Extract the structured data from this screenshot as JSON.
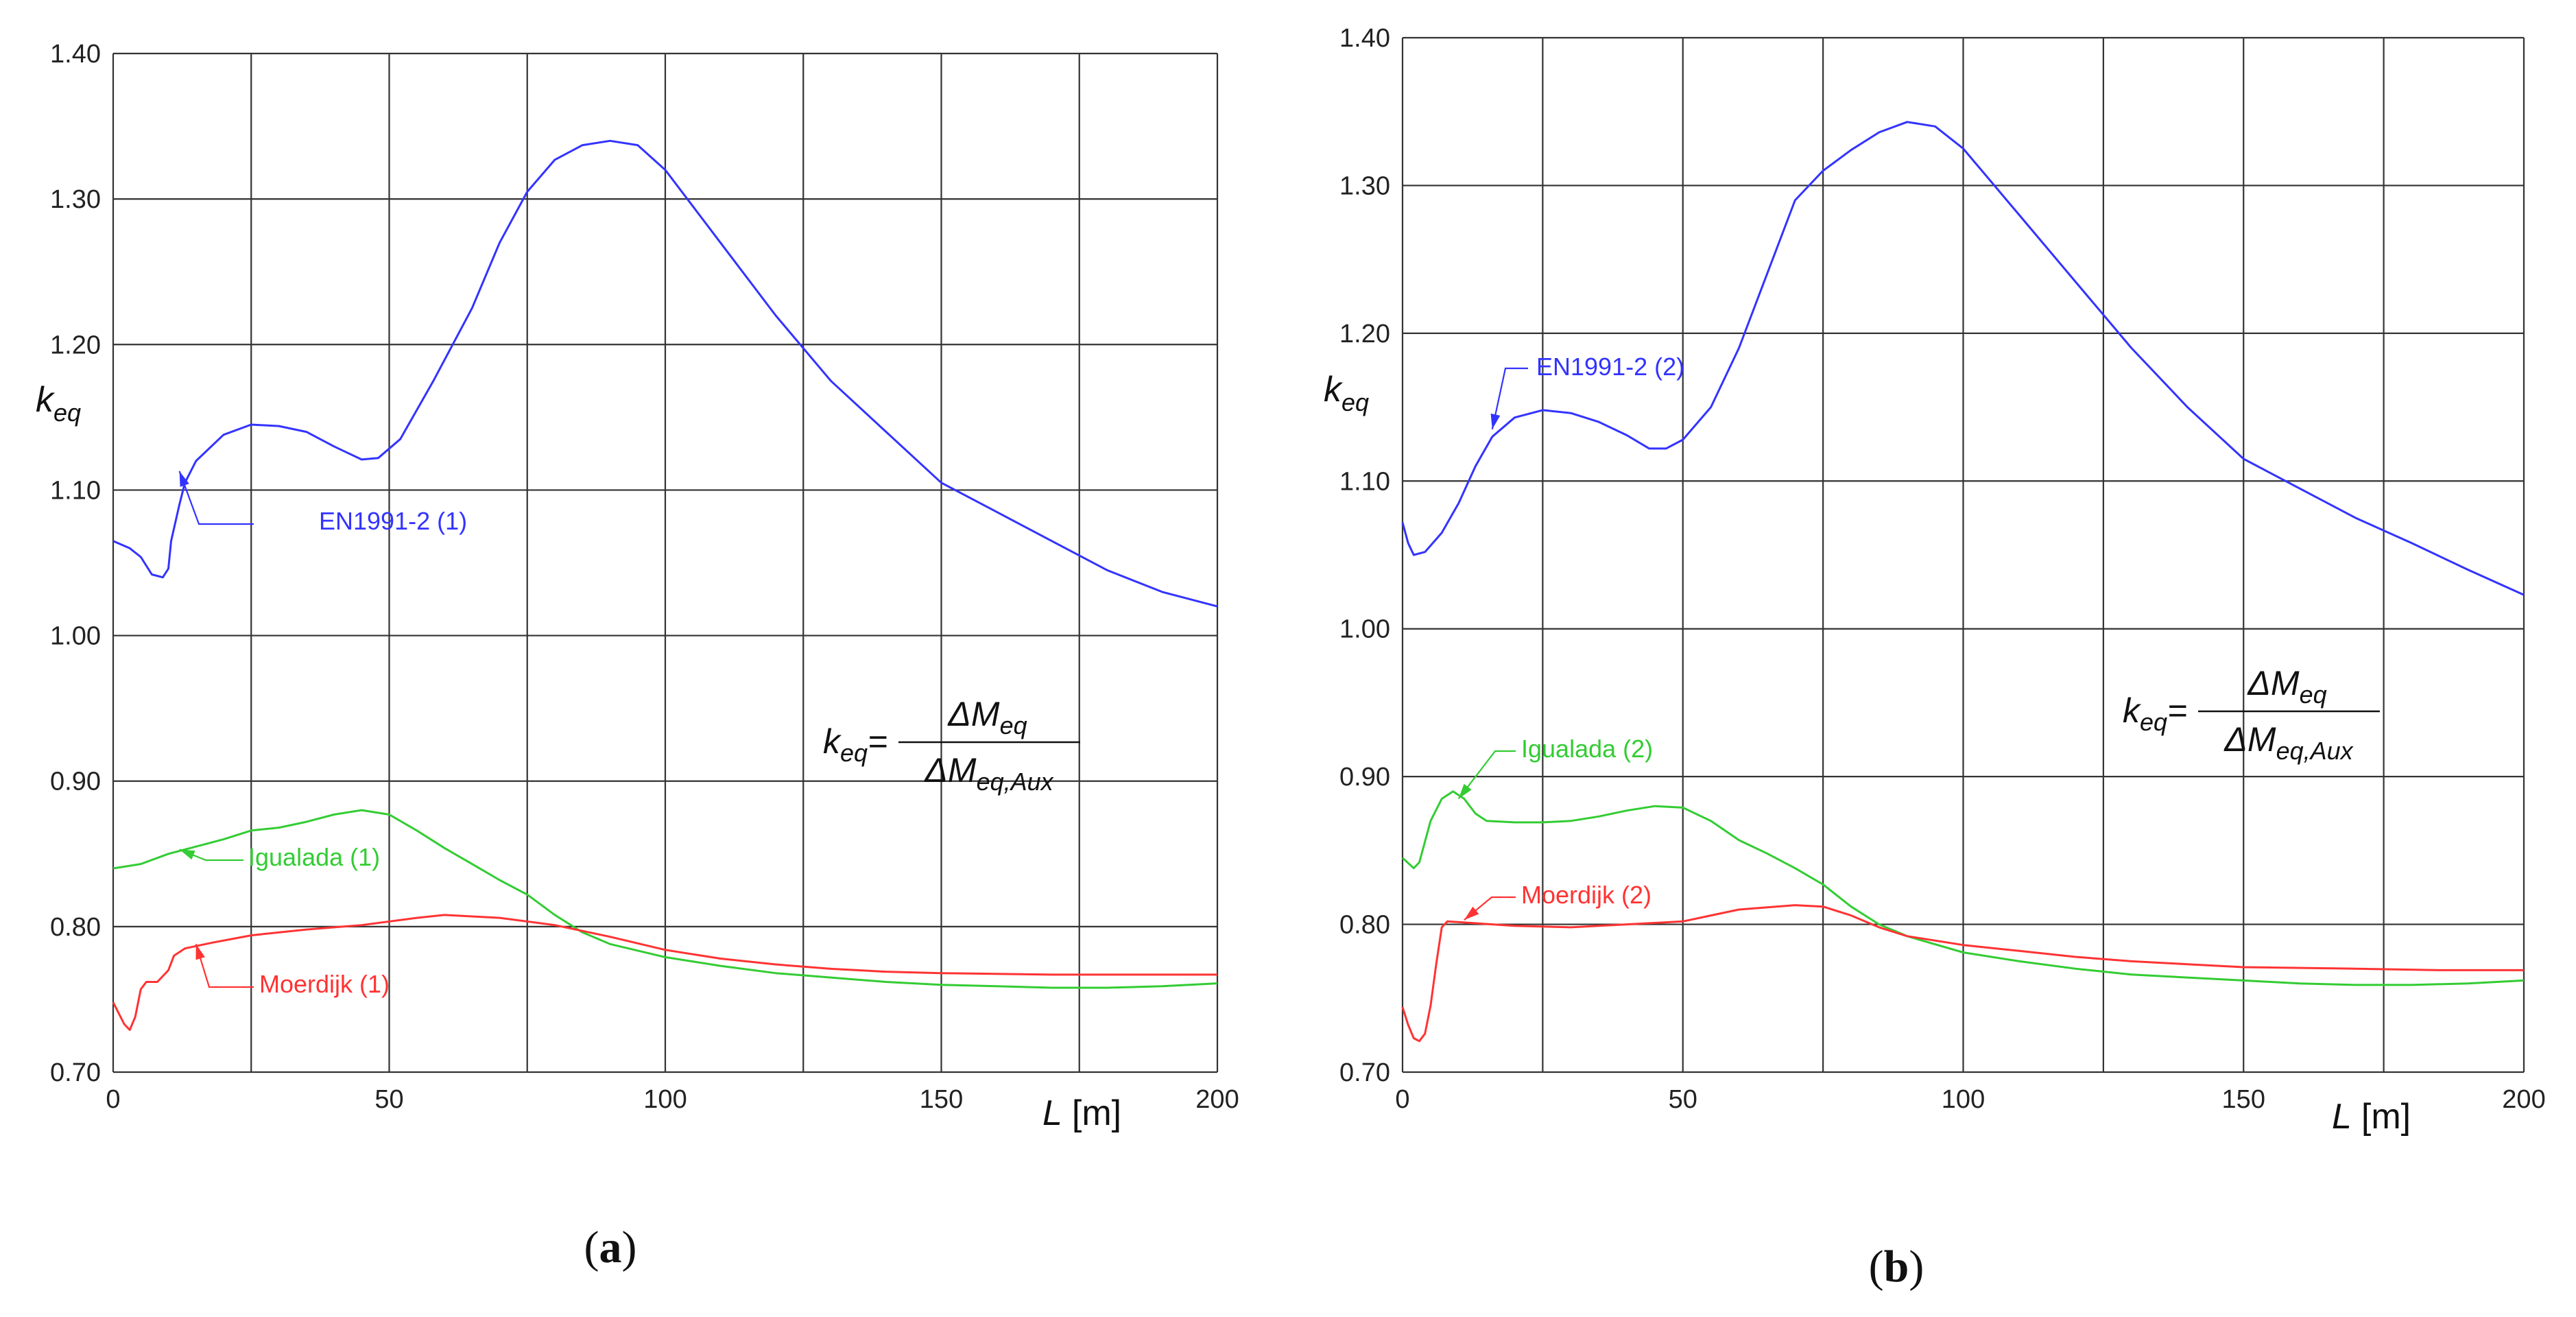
{
  "chart_data": [
    {
      "type": "line",
      "panel_label": "a",
      "xlabel_symbol": "L",
      "xlabel_unit": "[m]",
      "ylabel_symbol": "k",
      "ylabel_sub": "eq",
      "xlim": [
        0,
        200
      ],
      "ylim": [
        0.7,
        1.4
      ],
      "xticks": [
        "0",
        "50",
        "100",
        "150",
        "200"
      ],
      "yticks": [
        "0.70",
        "0.80",
        "0.90",
        "1.00",
        "1.10",
        "1.20",
        "1.30",
        "1.40"
      ],
      "grid": true,
      "formula": {
        "lhs": "k",
        "lhs_sub": "eq",
        "num": "ΔM",
        "num_sub": "eq",
        "den": "ΔM",
        "den_sub": "eq,Aux"
      },
      "series": [
        {
          "name": "EN1991-2 (1)",
          "color": "#3333ff",
          "points": [
            [
              0,
              1.065
            ],
            [
              3,
              1.06
            ],
            [
              5,
              1.054
            ],
            [
              7,
              1.042
            ],
            [
              9,
              1.04
            ],
            [
              10,
              1.046
            ],
            [
              10.5,
              1.065
            ],
            [
              12,
              1.09
            ],
            [
              13,
              1.105
            ],
            [
              15,
              1.12
            ],
            [
              20,
              1.138
            ],
            [
              25,
              1.145
            ],
            [
              30,
              1.144
            ],
            [
              35,
              1.14
            ],
            [
              40,
              1.13
            ],
            [
              45,
              1.121
            ],
            [
              48,
              1.122
            ],
            [
              52,
              1.135
            ],
            [
              58,
              1.175
            ],
            [
              65,
              1.225
            ],
            [
              70,
              1.27
            ],
            [
              75,
              1.305
            ],
            [
              80,
              1.327
            ],
            [
              85,
              1.337
            ],
            [
              90,
              1.34
            ],
            [
              95,
              1.337
            ],
            [
              100,
              1.32
            ],
            [
              110,
              1.27
            ],
            [
              120,
              1.22
            ],
            [
              130,
              1.175
            ],
            [
              140,
              1.14
            ],
            [
              150,
              1.105
            ],
            [
              160,
              1.085
            ],
            [
              170,
              1.065
            ],
            [
              180,
              1.045
            ],
            [
              190,
              1.03
            ],
            [
              200,
              1.02
            ]
          ]
        },
        {
          "name": "Igualada (1)",
          "color": "#33cc33",
          "points": [
            [
              0,
              0.84
            ],
            [
              5,
              0.843
            ],
            [
              10,
              0.85
            ],
            [
              15,
              0.855
            ],
            [
              20,
              0.86
            ],
            [
              25,
              0.866
            ],
            [
              30,
              0.868
            ],
            [
              35,
              0.872
            ],
            [
              40,
              0.877
            ],
            [
              45,
              0.88
            ],
            [
              50,
              0.877
            ],
            [
              55,
              0.866
            ],
            [
              60,
              0.854
            ],
            [
              65,
              0.843
            ],
            [
              70,
              0.832
            ],
            [
              75,
              0.822
            ],
            [
              80,
              0.808
            ],
            [
              85,
              0.796
            ],
            [
              90,
              0.788
            ],
            [
              100,
              0.779
            ],
            [
              110,
              0.773
            ],
            [
              120,
              0.768
            ],
            [
              130,
              0.765
            ],
            [
              140,
              0.762
            ],
            [
              150,
              0.76
            ],
            [
              160,
              0.759
            ],
            [
              170,
              0.758
            ],
            [
              180,
              0.758
            ],
            [
              190,
              0.759
            ],
            [
              200,
              0.761
            ]
          ]
        },
        {
          "name": "Moerdijk (1)",
          "color": "#ff3333",
          "points": [
            [
              0,
              0.748
            ],
            [
              2,
              0.733
            ],
            [
              3,
              0.729
            ],
            [
              4,
              0.738
            ],
            [
              5,
              0.757
            ],
            [
              6,
              0.762
            ],
            [
              8,
              0.762
            ],
            [
              10,
              0.77
            ],
            [
              11,
              0.78
            ],
            [
              13,
              0.785
            ],
            [
              18,
              0.789
            ],
            [
              25,
              0.794
            ],
            [
              35,
              0.798
            ],
            [
              45,
              0.801
            ],
            [
              55,
              0.806
            ],
            [
              60,
              0.808
            ],
            [
              70,
              0.806
            ],
            [
              80,
              0.801
            ],
            [
              90,
              0.793
            ],
            [
              100,
              0.784
            ],
            [
              110,
              0.778
            ],
            [
              120,
              0.774
            ],
            [
              130,
              0.771
            ],
            [
              140,
              0.769
            ],
            [
              150,
              0.768
            ],
            [
              170,
              0.767
            ],
            [
              185,
              0.767
            ],
            [
              200,
              0.767
            ]
          ]
        }
      ],
      "annotations": [
        {
          "series": "EN1991-2 (1)",
          "text": "EN1991-2 (1)",
          "color": "#3333ff"
        },
        {
          "series": "Igualada (1)",
          "text": "Igualada (1)",
          "color": "#33cc33"
        },
        {
          "series": "Moerdijk (1)",
          "text": "Moerdijk (1)",
          "color": "#ff3333"
        }
      ]
    },
    {
      "type": "line",
      "panel_label": "b",
      "xlabel_symbol": "L",
      "xlabel_unit": "[m]",
      "ylabel_symbol": "k",
      "ylabel_sub": "eq",
      "xlim": [
        0,
        200
      ],
      "ylim": [
        0.7,
        1.4
      ],
      "xticks": [
        "0",
        "50",
        "100",
        "150",
        "200"
      ],
      "yticks": [
        "0.70",
        "0.80",
        "0.90",
        "1.00",
        "1.10",
        "1.20",
        "1.30",
        "1.40"
      ],
      "grid": true,
      "formula": {
        "lhs": "k",
        "lhs_sub": "eq",
        "num": "ΔM",
        "num_sub": "eq",
        "den": "ΔM",
        "den_sub": "eq,Aux"
      },
      "series": [
        {
          "name": "EN1991-2 (2)",
          "color": "#3333ff",
          "points": [
            [
              0,
              1.072
            ],
            [
              1,
              1.058
            ],
            [
              2,
              1.05
            ],
            [
              4,
              1.052
            ],
            [
              7,
              1.065
            ],
            [
              10,
              1.085
            ],
            [
              13,
              1.11
            ],
            [
              16,
              1.13
            ],
            [
              20,
              1.143
            ],
            [
              25,
              1.148
            ],
            [
              30,
              1.146
            ],
            [
              35,
              1.14
            ],
            [
              40,
              1.131
            ],
            [
              44,
              1.122
            ],
            [
              47,
              1.122
            ],
            [
              50,
              1.128
            ],
            [
              55,
              1.15
            ],
            [
              60,
              1.19
            ],
            [
              65,
              1.24
            ],
            [
              70,
              1.29
            ],
            [
              75,
              1.31
            ],
            [
              80,
              1.324
            ],
            [
              85,
              1.336
            ],
            [
              90,
              1.343
            ],
            [
              95,
              1.34
            ],
            [
              100,
              1.325
            ],
            [
              110,
              1.28
            ],
            [
              120,
              1.235
            ],
            [
              130,
              1.19
            ],
            [
              140,
              1.15
            ],
            [
              150,
              1.115
            ],
            [
              160,
              1.095
            ],
            [
              170,
              1.075
            ],
            [
              180,
              1.058
            ],
            [
              190,
              1.04
            ],
            [
              200,
              1.023
            ]
          ]
        },
        {
          "name": "Igualada (2)",
          "color": "#33cc33",
          "points": [
            [
              0,
              0.845
            ],
            [
              2,
              0.838
            ],
            [
              3,
              0.842
            ],
            [
              5,
              0.87
            ],
            [
              7,
              0.885
            ],
            [
              9,
              0.89
            ],
            [
              11,
              0.885
            ],
            [
              13,
              0.875
            ],
            [
              15,
              0.87
            ],
            [
              20,
              0.869
            ],
            [
              25,
              0.869
            ],
            [
              30,
              0.87
            ],
            [
              35,
              0.873
            ],
            [
              40,
              0.877
            ],
            [
              45,
              0.88
            ],
            [
              50,
              0.879
            ],
            [
              55,
              0.87
            ],
            [
              60,
              0.857
            ],
            [
              65,
              0.848
            ],
            [
              70,
              0.838
            ],
            [
              75,
              0.827
            ],
            [
              80,
              0.812
            ],
            [
              85,
              0.8
            ],
            [
              90,
              0.792
            ],
            [
              100,
              0.781
            ],
            [
              110,
              0.775
            ],
            [
              120,
              0.77
            ],
            [
              130,
              0.766
            ],
            [
              140,
              0.764
            ],
            [
              150,
              0.762
            ],
            [
              160,
              0.76
            ],
            [
              170,
              0.759
            ],
            [
              180,
              0.759
            ],
            [
              190,
              0.76
            ],
            [
              200,
              0.762
            ]
          ]
        },
        {
          "name": "Moerdijk (2)",
          "color": "#ff3333",
          "points": [
            [
              0,
              0.744
            ],
            [
              1,
              0.732
            ],
            [
              2,
              0.723
            ],
            [
              3,
              0.721
            ],
            [
              4,
              0.726
            ],
            [
              5,
              0.745
            ],
            [
              6,
              0.773
            ],
            [
              7,
              0.798
            ],
            [
              8,
              0.802
            ],
            [
              12,
              0.801
            ],
            [
              20,
              0.799
            ],
            [
              30,
              0.798
            ],
            [
              40,
              0.8
            ],
            [
              50,
              0.802
            ],
            [
              55,
              0.806
            ],
            [
              60,
              0.81
            ],
            [
              70,
              0.813
            ],
            [
              75,
              0.812
            ],
            [
              80,
              0.806
            ],
            [
              85,
              0.798
            ],
            [
              90,
              0.792
            ],
            [
              100,
              0.786
            ],
            [
              110,
              0.782
            ],
            [
              120,
              0.778
            ],
            [
              130,
              0.775
            ],
            [
              140,
              0.773
            ],
            [
              150,
              0.771
            ],
            [
              170,
              0.77
            ],
            [
              185,
              0.769
            ],
            [
              200,
              0.769
            ]
          ]
        }
      ],
      "annotations": [
        {
          "series": "EN1991-2 (2)",
          "text": "EN1991-2 (2)",
          "color": "#3333ff"
        },
        {
          "series": "Igualada (2)",
          "text": "Igualada (2)",
          "color": "#33cc33"
        },
        {
          "series": "Moerdijk (2)",
          "text": "Moerdijk (2)",
          "color": "#ff3333"
        }
      ]
    }
  ]
}
